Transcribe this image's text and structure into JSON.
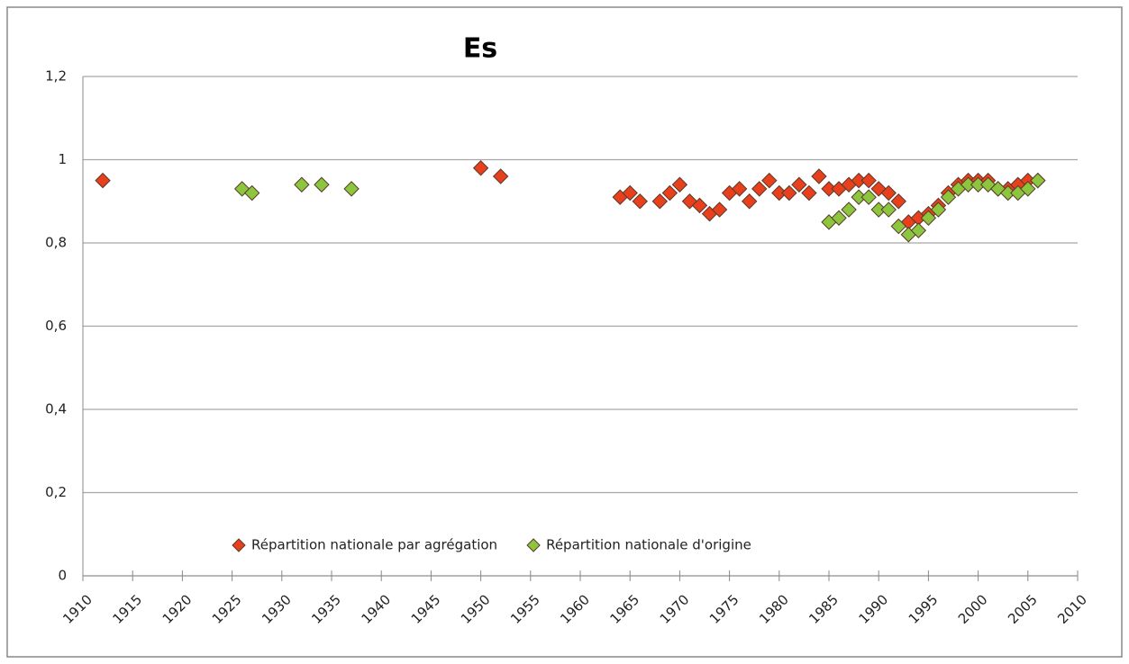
{
  "chart_data": {
    "type": "scatter",
    "title": "Es",
    "xlim": [
      1910,
      2010
    ],
    "xticks": [
      1910,
      1915,
      1920,
      1925,
      1930,
      1935,
      1940,
      1945,
      1950,
      1955,
      1960,
      1965,
      1970,
      1975,
      1980,
      1985,
      1990,
      1995,
      2000,
      2005,
      2010
    ],
    "ylim": [
      0,
      1.2
    ],
    "yticks": [
      0,
      {
        "value": 0.2,
        "label": "0,2"
      },
      {
        "value": 0.4,
        "label": "0,4"
      },
      {
        "value": 0.6,
        "label": "0,6"
      },
      {
        "value": 0.8,
        "label": "0,8"
      },
      1,
      {
        "value": 1.2,
        "label": "1,2"
      }
    ],
    "grid": true,
    "legend": "bottom",
    "series": [
      {
        "name": "Répartition nationale par agrégation",
        "color": "#e8401c",
        "x": [
          1912,
          1950,
          1952,
          1964,
          1965,
          1966,
          1968,
          1969,
          1970,
          1971,
          1972,
          1973,
          1974,
          1975,
          1976,
          1977,
          1978,
          1979,
          1980,
          1981,
          1982,
          1983,
          1984,
          1985,
          1986,
          1987,
          1988,
          1989,
          1990,
          1991,
          1992,
          1993,
          1994,
          1995,
          1996,
          1997,
          1998,
          1999,
          2000,
          2001,
          2002,
          2003,
          2004,
          2005,
          2006
        ],
        "values": [
          0.95,
          0.98,
          0.96,
          0.91,
          0.92,
          0.9,
          0.9,
          0.92,
          0.94,
          0.9,
          0.89,
          0.87,
          0.88,
          0.92,
          0.93,
          0.9,
          0.93,
          0.95,
          0.92,
          0.92,
          0.94,
          0.92,
          0.96,
          0.93,
          0.93,
          0.94,
          0.95,
          0.95,
          0.93,
          0.92,
          0.9,
          0.85,
          0.86,
          0.87,
          0.89,
          0.92,
          0.94,
          0.95,
          0.95,
          0.95,
          0.93,
          0.93,
          0.94,
          0.95,
          0.95
        ]
      },
      {
        "name": "Répartition nationale d'origine",
        "color": "#8cc63f",
        "x": [
          1926,
          1927,
          1932,
          1934,
          1937,
          1985,
          1986,
          1987,
          1988,
          1989,
          1990,
          1991,
          1992,
          1993,
          1994,
          1995,
          1996,
          1997,
          1998,
          1999,
          2000,
          2001,
          2002,
          2003,
          2004,
          2005,
          2006
        ],
        "values": [
          0.93,
          0.92,
          0.94,
          0.94,
          0.93,
          0.85,
          0.86,
          0.88,
          0.91,
          0.91,
          0.88,
          0.88,
          0.84,
          0.82,
          0.83,
          0.86,
          0.88,
          0.91,
          0.93,
          0.94,
          0.94,
          0.94,
          0.93,
          0.92,
          0.92,
          0.93,
          0.95
        ]
      }
    ]
  }
}
